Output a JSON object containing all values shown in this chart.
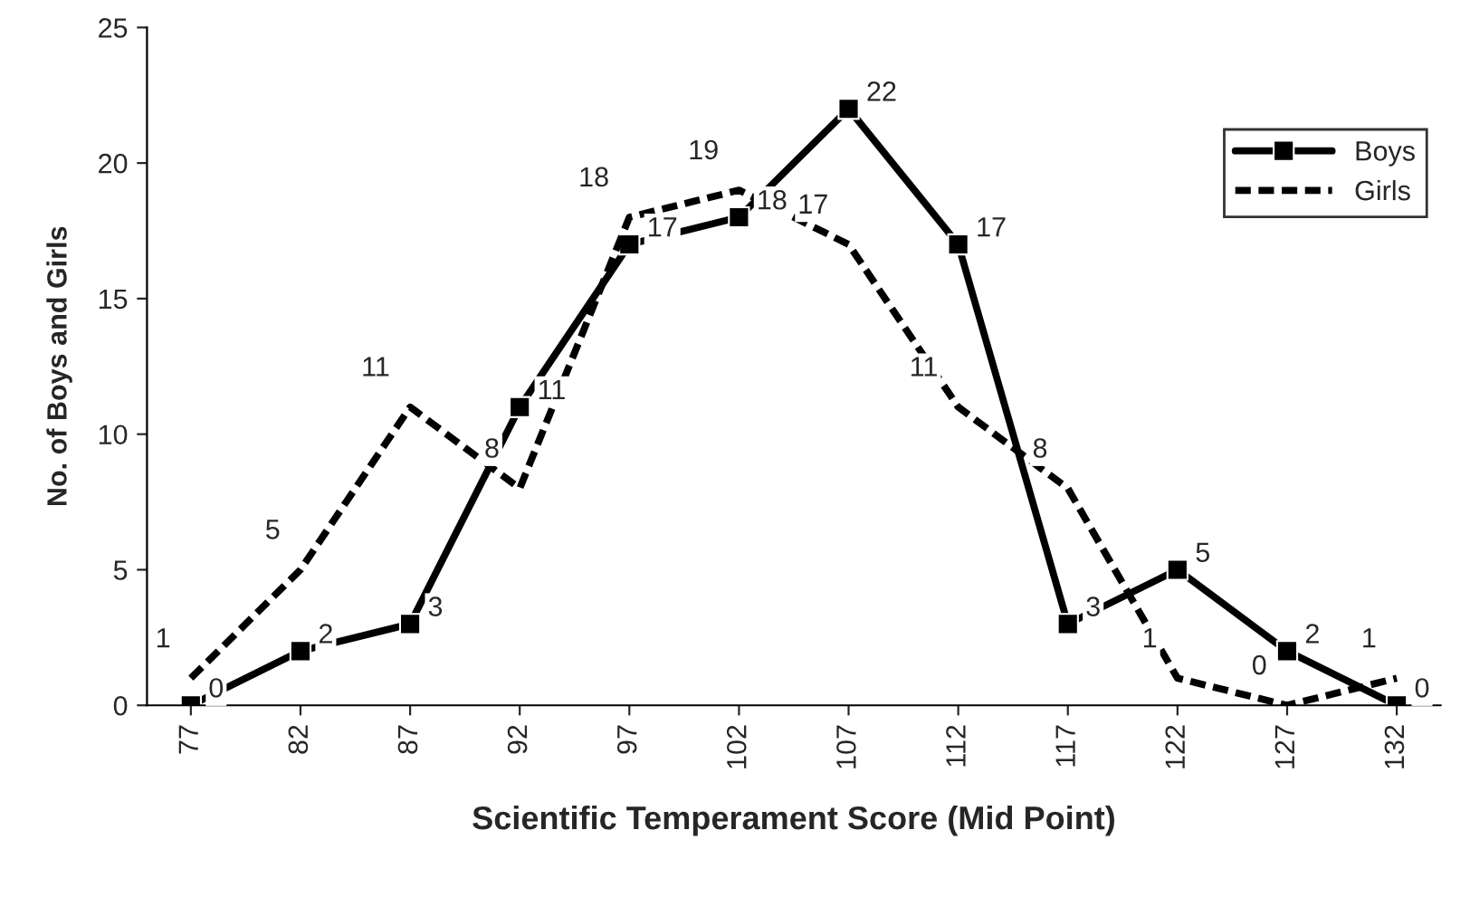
{
  "chart_data": {
    "type": "line",
    "xlabel": "Scientific Temperament Score (Mid Point)",
    "ylabel": "No. of Boys and Girls",
    "categories": [
      "77",
      "82",
      "87",
      "92",
      "97",
      "102",
      "107",
      "112",
      "117",
      "122",
      "127",
      "132"
    ],
    "series": [
      {
        "name": "Boys",
        "color": "#000000",
        "marker": "square",
        "line_style": "solid",
        "values": [
          0,
          2,
          3,
          11,
          17,
          18,
          22,
          17,
          3,
          5,
          2,
          0
        ]
      },
      {
        "name": "Girls",
        "color": "#000000",
        "marker": "none",
        "line_style": "dashed",
        "values": [
          1,
          5,
          11,
          8,
          18,
          19,
          17,
          11,
          8,
          1,
          0,
          1
        ]
      }
    ],
    "ylim": [
      0,
      25
    ],
    "yticks": [
      0,
      5,
      10,
      15,
      20,
      25
    ],
    "grid": false,
    "legend": "top right",
    "data_labels": true
  }
}
